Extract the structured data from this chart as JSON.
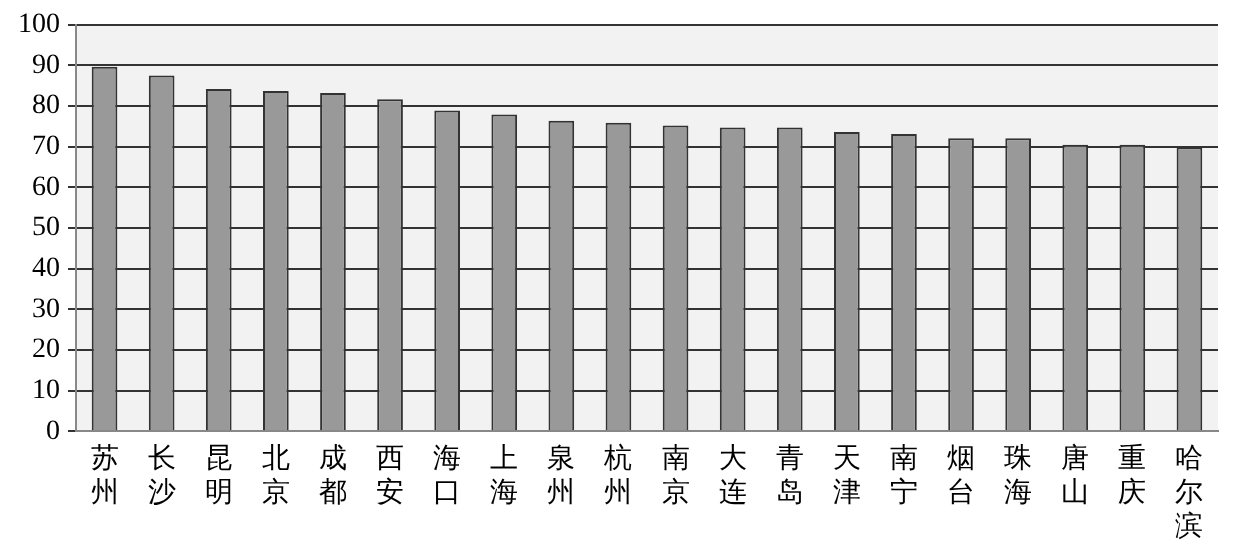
{
  "chart_data": {
    "type": "bar",
    "categories": [
      "苏州",
      "长沙",
      "昆明",
      "北京",
      "成都",
      "西安",
      "海口",
      "上海",
      "泉州",
      "杭州",
      "南京",
      "大连",
      "青岛",
      "天津",
      "南宁",
      "烟台",
      "珠海",
      "唐山",
      "重庆",
      "哈尔滨"
    ],
    "values": [
      89.7,
      87.5,
      84.2,
      83.7,
      83.2,
      81.7,
      78.9,
      77.9,
      76.4,
      75.9,
      75.2,
      74.7,
      74.7,
      73.6,
      73.1,
      72.1,
      72.1,
      70.5,
      70.5,
      69.9
    ],
    "color": "#999999",
    "ylim": [
      0,
      100
    ],
    "yticks": [
      0,
      10,
      20,
      30,
      40,
      50,
      60,
      70,
      80,
      90,
      100
    ],
    "grid": "y",
    "legend": false
  }
}
